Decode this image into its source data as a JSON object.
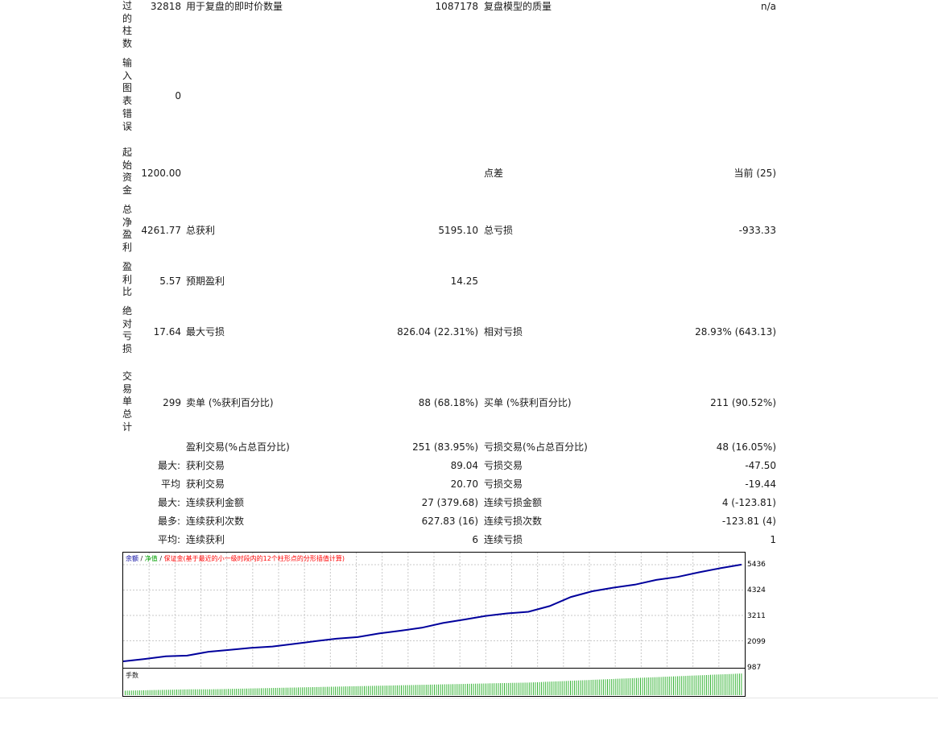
{
  "rows": {
    "bars": {
      "label": "过的柱数",
      "value": "32818",
      "c1": "用于复盘的即时价数量",
      "v1": "1087178",
      "c2": "复盘模型的质量",
      "v2": "n/a"
    },
    "errors": {
      "label": "输入图表错误",
      "value": "0"
    },
    "deposit": {
      "label": "起始资金",
      "value": "1200.00",
      "c2": "点差",
      "v2": "当前 (25)"
    },
    "net": {
      "label": "总净盈利",
      "value": "4261.77",
      "c1": "总获利",
      "v1": "5195.10",
      "c2": "总亏损",
      "v2": "-933.33"
    },
    "pf": {
      "label": "盈利比",
      "value": "5.57",
      "c1": "预期盈利",
      "v1": "14.25"
    },
    "dd": {
      "label": "绝对亏损",
      "value": "17.64",
      "c1": "最大亏损",
      "v1": "826.04 (22.31%)",
      "c2": "相对亏损",
      "v2": "28.93% (643.13)"
    },
    "trades": {
      "label": "交易单总计",
      "value": "299",
      "c1": "卖单 (%获利百分比)",
      "v1": "88 (68.18%)",
      "c2": "买单 (%获利百分比)",
      "v2": "211 (90.52%)"
    }
  },
  "stats": [
    {
      "prefix": "",
      "c1": "盈利交易(%占总百分比)",
      "v1": "251 (83.95%)",
      "c2": "亏损交易(%占总百分比)",
      "v2": "48 (16.05%)"
    },
    {
      "prefix": "最大:",
      "c1": "获利交易",
      "v1": "89.04",
      "c2": "亏损交易",
      "v2": "-47.50"
    },
    {
      "prefix": "平均",
      "c1": "获利交易",
      "v1": "20.70",
      "c2": "亏损交易",
      "v2": "-19.44"
    },
    {
      "prefix": "最大:",
      "c1": "连续获利金额",
      "v1": "27 (379.68)",
      "c2": "连续亏损金额",
      "v2": "4 (-123.81)"
    },
    {
      "prefix": "最多:",
      "c1": "连续获利次数",
      "v1": "627.83 (16)",
      "c2": "连续亏损次数",
      "v2": "-123.81 (4)"
    },
    {
      "prefix": "平均:",
      "c1": "连续获利",
      "v1": "6",
      "c2": "连续亏损",
      "v2": "1"
    }
  ],
  "chart": {
    "legend_balance": "余额",
    "legend_equity": "净值",
    "legend_sep": " / ",
    "legend_margin": "保证金(基于最近的小一级时段内的12个柱形点的分形插值计算)",
    "volume_label": "手数",
    "y_ticks": [
      "5436",
      "4324",
      "3211",
      "2099",
      "987"
    ],
    "colors": {
      "balance": "#00009c",
      "equity": "#00a000",
      "margin": "#ff0000",
      "volume": "#39b539",
      "grid": "#c8c8c8"
    }
  },
  "chart_data": {
    "type": "line",
    "series": [
      {
        "name": "余额",
        "values": [
          1200,
          1300,
          1420,
          1450,
          1620,
          1700,
          1790,
          1850,
          1960,
          2080,
          2190,
          2260,
          2420,
          2540,
          2670,
          2880,
          3030,
          3190,
          3300,
          3370,
          3620,
          4020,
          4270,
          4430,
          4560,
          4770,
          4900,
          5100,
          5280,
          5440
        ]
      },
      {
        "name": "手数",
        "values": [
          0.1,
          0.11,
          0.12,
          0.13,
          0.13,
          0.14,
          0.15,
          0.16,
          0.17,
          0.18,
          0.19,
          0.2,
          0.21,
          0.22,
          0.23,
          0.24,
          0.25,
          0.26,
          0.27,
          0.28,
          0.3,
          0.32,
          0.34,
          0.36,
          0.38,
          0.4,
          0.42,
          0.44,
          0.46,
          0.48
        ]
      }
    ],
    "ylim": [
      987,
      5436
    ]
  }
}
